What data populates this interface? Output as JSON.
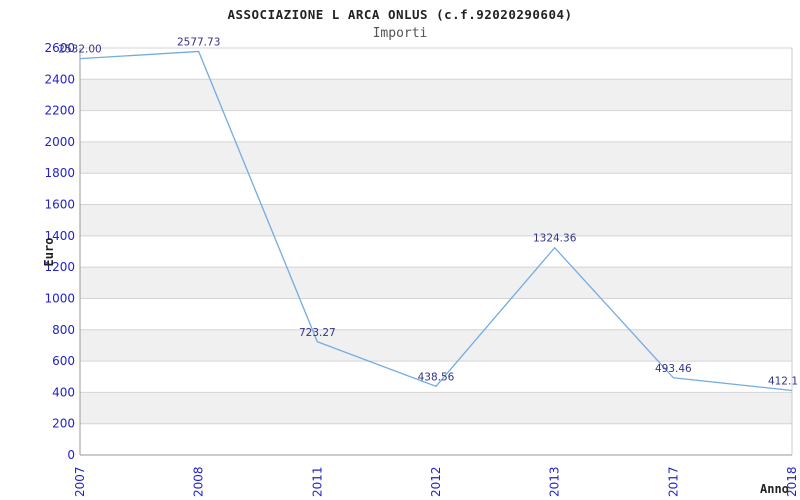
{
  "chart_data": {
    "type": "line",
    "title": "ASSOCIAZIONE L ARCA ONLUS (c.f.92020290604)",
    "subtitle": "Importi",
    "xlabel": "Anno",
    "ylabel": "Euro",
    "categories": [
      "2007",
      "2008",
      "2011",
      "2012",
      "2013",
      "2017",
      "2018"
    ],
    "series": [
      {
        "name": "Importi",
        "values": [
          2532.0,
          2577.73,
          723.27,
          438.56,
          1324.36,
          493.46,
          412.1
        ],
        "point_labels": [
          "2532.00",
          "2577.73",
          "723.27",
          "438.56",
          "1324.36",
          "493.46",
          "412.1"
        ]
      }
    ],
    "yticks": [
      0,
      200,
      400,
      600,
      800,
      1000,
      1200,
      1400,
      1600,
      1800,
      2000,
      2200,
      2400,
      2600
    ],
    "ylim": [
      0,
      2600
    ],
    "grid": true,
    "alternating_bands": true,
    "legend": "none",
    "colors": {
      "line": "#74abe2",
      "tick_label": "#2222cc",
      "point_label": "#333388",
      "title": "#222222",
      "subtitle": "#555555",
      "band": "#f0f0f0",
      "gridline": "#d4d4d4",
      "axis": "#999999",
      "border": "#cccccc",
      "background": "#ffffff"
    }
  }
}
